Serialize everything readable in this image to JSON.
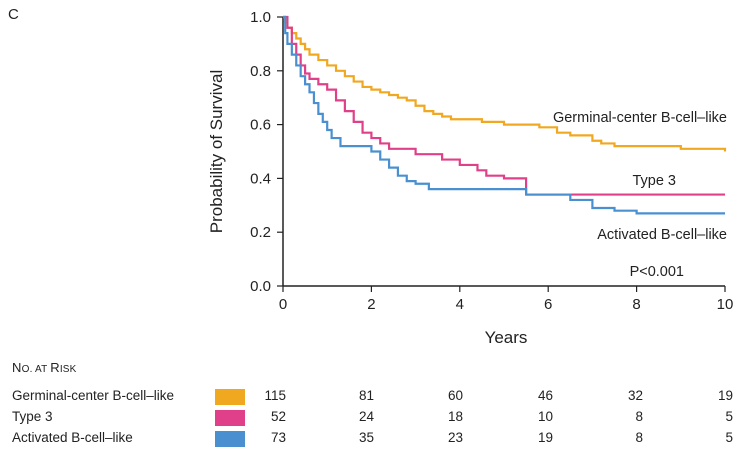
{
  "panel_letter": "C",
  "chart_data": {
    "type": "line",
    "step": true,
    "xlabel": "Years",
    "ylabel": "Probability of Survival",
    "xlim": [
      0,
      10
    ],
    "ylim": [
      0,
      1.0
    ],
    "x_ticks": [
      "0",
      "2",
      "4",
      "6",
      "8",
      "10"
    ],
    "y_ticks": [
      "0.0",
      "0.2",
      "0.4",
      "0.6",
      "0.8",
      "1.0"
    ],
    "grid": false,
    "annotation": "P<0.001",
    "series": [
      {
        "name": "Germinal-center B-cell–like",
        "color": "#f0a820",
        "points": [
          [
            0,
            1.0
          ],
          [
            0.05,
            0.98
          ],
          [
            0.1,
            0.96
          ],
          [
            0.2,
            0.94
          ],
          [
            0.3,
            0.92
          ],
          [
            0.4,
            0.9
          ],
          [
            0.5,
            0.88
          ],
          [
            0.6,
            0.86
          ],
          [
            0.8,
            0.84
          ],
          [
            1.0,
            0.82
          ],
          [
            1.2,
            0.8
          ],
          [
            1.4,
            0.78
          ],
          [
            1.6,
            0.76
          ],
          [
            1.8,
            0.74
          ],
          [
            2.0,
            0.73
          ],
          [
            2.2,
            0.72
          ],
          [
            2.4,
            0.71
          ],
          [
            2.6,
            0.7
          ],
          [
            2.8,
            0.69
          ],
          [
            3.0,
            0.67
          ],
          [
            3.2,
            0.65
          ],
          [
            3.4,
            0.64
          ],
          [
            3.6,
            0.63
          ],
          [
            3.8,
            0.62
          ],
          [
            4.5,
            0.61
          ],
          [
            5.0,
            0.6
          ],
          [
            5.8,
            0.59
          ],
          [
            6.2,
            0.57
          ],
          [
            6.5,
            0.56
          ],
          [
            7.0,
            0.54
          ],
          [
            7.2,
            0.53
          ],
          [
            7.5,
            0.52
          ],
          [
            8.0,
            0.52
          ],
          [
            9.0,
            0.51
          ],
          [
            10.0,
            0.5
          ]
        ]
      },
      {
        "name": "Type 3",
        "color": "#e0408a",
        "points": [
          [
            0,
            1.0
          ],
          [
            0.1,
            0.96
          ],
          [
            0.2,
            0.9
          ],
          [
            0.3,
            0.86
          ],
          [
            0.4,
            0.82
          ],
          [
            0.5,
            0.79
          ],
          [
            0.6,
            0.77
          ],
          [
            0.8,
            0.75
          ],
          [
            1.0,
            0.73
          ],
          [
            1.2,
            0.69
          ],
          [
            1.4,
            0.65
          ],
          [
            1.6,
            0.61
          ],
          [
            1.8,
            0.57
          ],
          [
            2.0,
            0.55
          ],
          [
            2.2,
            0.53
          ],
          [
            2.4,
            0.51
          ],
          [
            3.0,
            0.49
          ],
          [
            3.6,
            0.47
          ],
          [
            4.0,
            0.45
          ],
          [
            4.4,
            0.43
          ],
          [
            4.6,
            0.41
          ],
          [
            5.0,
            0.4
          ],
          [
            5.5,
            0.34
          ],
          [
            10.0,
            0.34
          ]
        ]
      },
      {
        "name": "Activated B-cell–like",
        "color": "#4a90d0",
        "points": [
          [
            0,
            1.0
          ],
          [
            0.05,
            0.94
          ],
          [
            0.1,
            0.9
          ],
          [
            0.2,
            0.86
          ],
          [
            0.3,
            0.82
          ],
          [
            0.4,
            0.78
          ],
          [
            0.5,
            0.75
          ],
          [
            0.6,
            0.72
          ],
          [
            0.7,
            0.68
          ],
          [
            0.8,
            0.64
          ],
          [
            0.9,
            0.61
          ],
          [
            1.0,
            0.58
          ],
          [
            1.1,
            0.55
          ],
          [
            1.3,
            0.52
          ],
          [
            2.0,
            0.5
          ],
          [
            2.2,
            0.47
          ],
          [
            2.4,
            0.44
          ],
          [
            2.6,
            0.41
          ],
          [
            2.8,
            0.39
          ],
          [
            3.0,
            0.38
          ],
          [
            3.3,
            0.36
          ],
          [
            4.0,
            0.36
          ],
          [
            5.5,
            0.34
          ],
          [
            6.5,
            0.32
          ],
          [
            7.0,
            0.29
          ],
          [
            7.5,
            0.28
          ],
          [
            8.0,
            0.27
          ],
          [
            10.0,
            0.27
          ]
        ]
      }
    ]
  },
  "risk_table": {
    "title_big": "N",
    "title_small_1": "O. AT ",
    "title_big_2": "R",
    "title_small_2": "ISK",
    "time_points": [
      0,
      2,
      4,
      6,
      8,
      10
    ],
    "rows": [
      {
        "label": "Germinal-center B-cell–like",
        "color": "#f0a820",
        "values": [
          115,
          81,
          60,
          46,
          32,
          19
        ]
      },
      {
        "label": "Type 3",
        "color": "#e0408a",
        "values": [
          52,
          24,
          18,
          10,
          8,
          5
        ]
      },
      {
        "label": "Activated B-cell–like",
        "color": "#4a90d0",
        "values": [
          73,
          35,
          23,
          19,
          8,
          5
        ]
      }
    ]
  }
}
